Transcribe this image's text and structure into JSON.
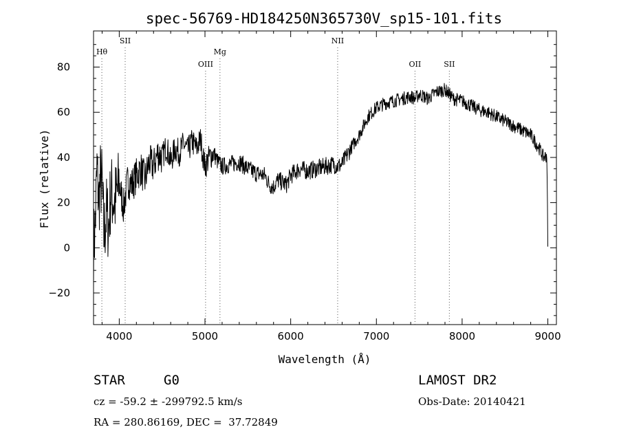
{
  "title": "spec-56769-HD184250N365730V_sp15-101.fits",
  "chart_data": {
    "type": "line",
    "title": "spec-56769-HD184250N365730V_sp15-101.fits",
    "xlabel": "Wavelength (Å)",
    "ylabel": "Flux (relative)",
    "xlim": [
      3700,
      9100
    ],
    "ylim": [
      -34,
      96
    ],
    "x_ticks": [
      4000,
      5000,
      6000,
      7000,
      8000,
      9000
    ],
    "y_ticks": [
      -20,
      0,
      20,
      40,
      60,
      80
    ],
    "grid": false,
    "series": [
      {
        "x": [
          3700,
          3720,
          3740,
          3760,
          3780,
          3800,
          3820,
          3850,
          3880,
          3900,
          3950,
          4000,
          4050,
          4100,
          4150,
          4200,
          4250,
          4300,
          4350,
          4400,
          4450,
          4500,
          4550,
          4600,
          4650,
          4700,
          4750,
          4800,
          4850,
          4900,
          4950,
          4980,
          5000,
          5050,
          5100,
          5150,
          5200,
          5300,
          5400,
          5500,
          5600,
          5700,
          5750,
          5800,
          5850,
          5900,
          5950,
          6000,
          6100,
          6200,
          6300,
          6400,
          6500,
          6550,
          6600,
          6700,
          6800,
          6900,
          7000,
          7100,
          7200,
          7300,
          7400,
          7450,
          7500,
          7600,
          7700,
          7800,
          7850,
          7900,
          8000,
          8100,
          8200,
          8300,
          8400,
          8500,
          8600,
          8700,
          8800,
          8850,
          8900,
          8950,
          8990,
          9000
        ],
        "y": [
          0,
          10,
          35,
          20,
          30,
          28,
          5,
          15,
          10,
          25,
          20,
          28,
          18,
          30,
          28,
          32,
          35,
          30,
          38,
          36,
          42,
          40,
          45,
          38,
          44,
          42,
          46,
          43,
          47,
          44,
          48,
          40,
          36,
          40,
          42,
          38,
          36,
          37,
          38,
          35,
          33,
          32,
          28,
          27,
          30,
          29,
          28,
          32,
          35,
          34,
          35,
          36,
          37,
          36,
          37,
          44,
          50,
          58,
          62,
          64,
          65,
          66,
          67,
          66,
          68,
          66,
          69,
          70,
          68,
          66,
          65,
          63,
          61,
          60,
          58,
          56,
          54,
          52,
          50,
          47,
          44,
          40,
          41,
          0
        ]
      }
    ],
    "lines": [
      {
        "label": "Hθ",
        "x": 3797,
        "tier": 1
      },
      {
        "label": "SII",
        "x": 4069,
        "tier": 0
      },
      {
        "label": "OIII",
        "x": 5007,
        "tier": 2
      },
      {
        "label": "Mg",
        "x": 5175,
        "tier": 1
      },
      {
        "label": "NII",
        "x": 6548,
        "tier": 0
      },
      {
        "label": "OII",
        "x": 7450,
        "tier": 2
      },
      {
        "label": "SII",
        "x": 7851,
        "tier": 2
      }
    ]
  },
  "info": {
    "object_class": "STAR",
    "subclass": "G0",
    "survey": "LAMOST DR2",
    "redshift": "cz = -59.2 ± -299792.5 km/s",
    "obs_date": "Obs-Date: 20140421",
    "coords": "RA = 280.86169, DEC =  37.72849"
  }
}
